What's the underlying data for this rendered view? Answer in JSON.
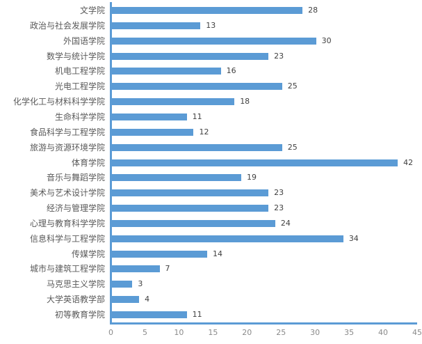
{
  "chart_data": {
    "type": "bar",
    "orientation": "horizontal",
    "title": "",
    "xlabel": "",
    "ylabel": "",
    "categories": [
      "文学院",
      "政治与社会发展学院",
      "外国语学院",
      "数学与统计学院",
      "机电工程学院",
      "光电工程学院",
      "化学化工与材料科学学院",
      "生命科学学院",
      "食品科学与工程学院",
      "旅游与资源环境学院",
      "体育学院",
      "音乐与舞蹈学院",
      "美术与艺术设计学院",
      "经济与管理学院",
      "心理与教育科学学院",
      "信息科学与工程学院",
      "传媒学院",
      "城市与建筑工程学院",
      "马克思主义学院",
      "大学英语教学部",
      "初等教育学院"
    ],
    "values": [
      28,
      13,
      30,
      23,
      16,
      25,
      18,
      11,
      12,
      25,
      42,
      19,
      23,
      23,
      24,
      34,
      14,
      7,
      3,
      4,
      11
    ],
    "data_labels_shown": true,
    "xlim": [
      0,
      45
    ],
    "x_ticks": [
      0,
      5,
      10,
      15,
      20,
      25,
      30,
      35,
      40,
      45
    ],
    "grid": false,
    "legend": false,
    "colors": {
      "bar": "#5B9BD5",
      "axis_line": "#5B9BD5",
      "category_label": "#595959",
      "value_label": "#404040",
      "tick_label": "#8a8a8a",
      "background": "#ffffff"
    }
  }
}
